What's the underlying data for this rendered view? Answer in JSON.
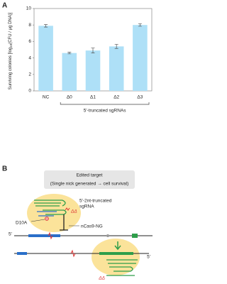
{
  "chart_data": {
    "type": "bar",
    "panel_label": "A",
    "ylabel_parts": [
      "Surviving colonies [log",
      "10",
      "(CFU / μg DNA)]"
    ],
    "categories": [
      "NC",
      "Δ0",
      "Δ1",
      "Δ2",
      "Δ3"
    ],
    "values": [
      7.9,
      4.6,
      4.9,
      5.4,
      8.0
    ],
    "errors": [
      0.15,
      0.1,
      0.3,
      0.25,
      0.15
    ],
    "color": "#aee0f7",
    "group_label": "5'-truncated sgRNAs",
    "ylim": [
      0,
      10
    ],
    "yticks": [
      0,
      2,
      4,
      6,
      8,
      10
    ]
  },
  "diagram": {
    "panel_label": "B",
    "header": [
      "Edited target",
      "(Single nick generated → cell survival)"
    ],
    "sgrna_label": [
      "5'-2nt-truncated",
      "sgRNA"
    ],
    "mutation": "D10A",
    "enzyme": "nCas9-NG",
    "end_top": "5'",
    "end_bottom": "5'",
    "delta_top": "ΔΔ",
    "delta_bottom": "ΔΔ"
  }
}
